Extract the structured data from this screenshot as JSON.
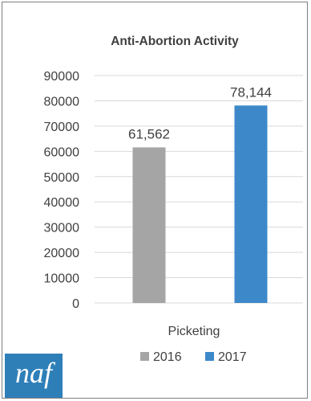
{
  "chart_data": {
    "type": "bar",
    "title": "Anti-Abortion Activity",
    "categories": [
      "Picketing"
    ],
    "series": [
      {
        "name": "2016",
        "values": [
          61562
        ],
        "label": "61,562",
        "color": "#a5a5a5"
      },
      {
        "name": "2017",
        "values": [
          78144
        ],
        "label": "78,144",
        "color": "#3d88c9"
      }
    ],
    "xlabel": "",
    "ylabel": "",
    "ylim": [
      0,
      90000
    ],
    "yticks": [
      "0",
      "10000",
      "20000",
      "30000",
      "40000",
      "50000",
      "60000",
      "70000",
      "80000",
      "90000"
    ],
    "grid": true,
    "legend_position": "bottom"
  },
  "logo": {
    "text": "naf",
    "color": "#2e7fb8"
  }
}
